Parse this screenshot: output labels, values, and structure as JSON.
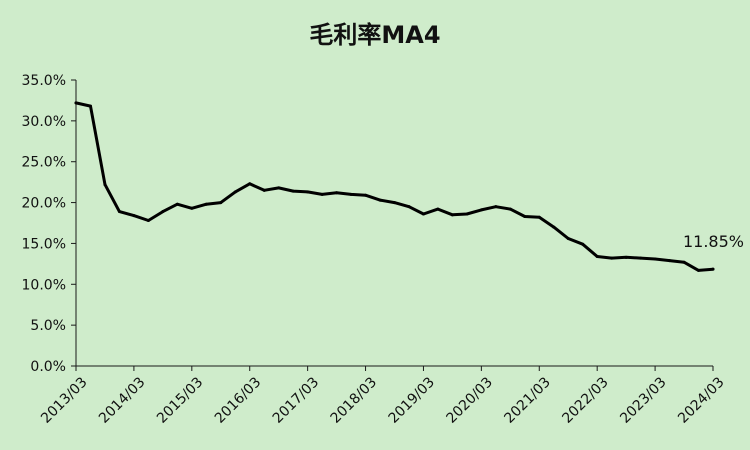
{
  "chart_data": {
    "type": "line",
    "title": "毛利率MA4",
    "xlabel": "",
    "ylabel": "",
    "ylim": [
      0,
      35
    ],
    "y_ticks": [
      "0.0%",
      "5.0%",
      "10.0%",
      "15.0%",
      "20.0%",
      "25.0%",
      "30.0%",
      "35.0%"
    ],
    "x_ticks": [
      "2013/03",
      "2014/03",
      "2015/03",
      "2016/03",
      "2017/03",
      "2018/03",
      "2019/03",
      "2020/03",
      "2021/03",
      "2022/03",
      "2023/03",
      "2024/03"
    ],
    "grid": false,
    "legend": "none",
    "series": [
      {
        "x": [
          "2013/03",
          "2013/06",
          "2013/09",
          "2013/12",
          "2014/03",
          "2014/06",
          "2014/09",
          "2014/12",
          "2015/03",
          "2015/06",
          "2015/09",
          "2015/12",
          "2016/03",
          "2016/06",
          "2016/09",
          "2016/12",
          "2017/03",
          "2017/06",
          "2017/09",
          "2017/12",
          "2018/03",
          "2018/06",
          "2018/09",
          "2018/12",
          "2019/03",
          "2019/06",
          "2019/09",
          "2019/12",
          "2020/03",
          "2020/06",
          "2020/09",
          "2020/12",
          "2021/03",
          "2021/06",
          "2021/09",
          "2021/12",
          "2022/03",
          "2022/06",
          "2022/09",
          "2022/12",
          "2023/03",
          "2023/06",
          "2023/09",
          "2023/12",
          "2024/03"
        ],
        "values": [
          32.2,
          31.8,
          22.2,
          18.9,
          18.4,
          17.8,
          18.9,
          19.8,
          19.3,
          19.8,
          20.0,
          21.3,
          22.3,
          21.5,
          21.8,
          21.4,
          21.3,
          21.0,
          21.2,
          21.0,
          20.9,
          20.3,
          20.0,
          19.5,
          18.6,
          19.2,
          18.5,
          18.6,
          19.1,
          19.5,
          19.2,
          18.3,
          18.2,
          17.0,
          15.6,
          14.9,
          13.4,
          13.2,
          13.3,
          13.2,
          13.1,
          12.9,
          12.7,
          11.7,
          11.85
        ]
      }
    ],
    "annotations": [
      {
        "text": "11.85%",
        "x": "2024/03",
        "y": 11.85
      }
    ]
  }
}
